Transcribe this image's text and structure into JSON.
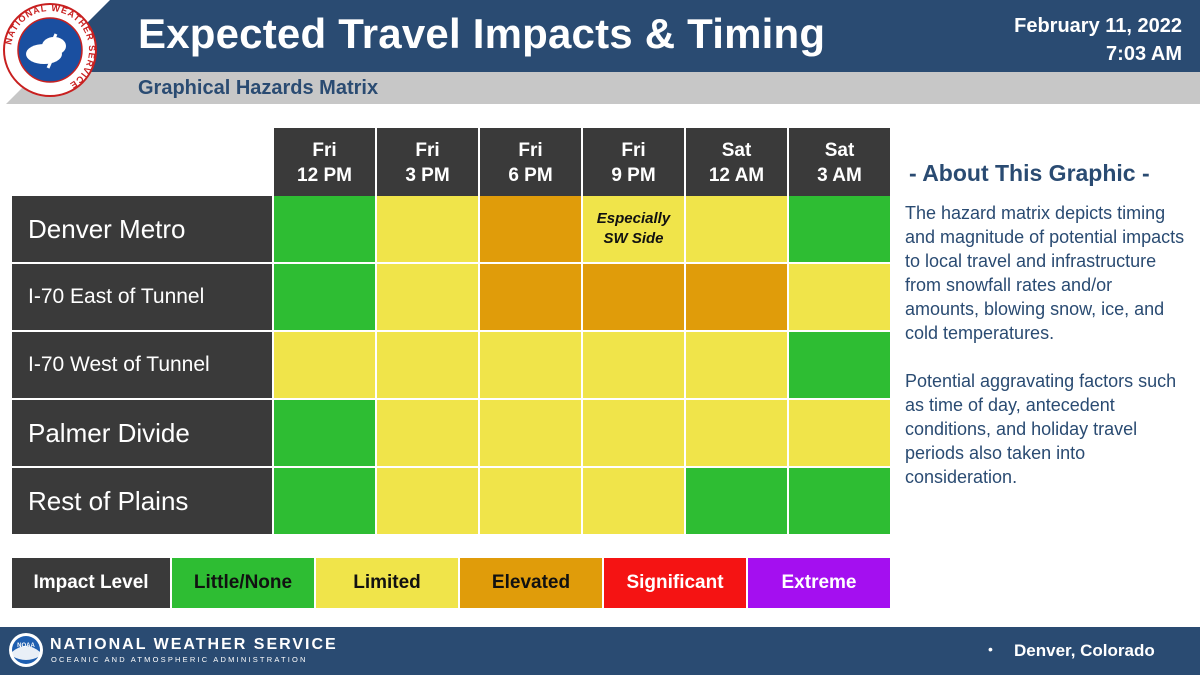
{
  "header": {
    "title": "Expected Travel Impacts & Timing",
    "subtitle": "Graphical Hazards Matrix",
    "date": "February 11, 2022",
    "time": "7:03 AM",
    "logo_ring_text": "NATIONAL WEATHER SERVICE",
    "colors": {
      "bar": "#2a4b72",
      "subbar": "#c7c7c7"
    }
  },
  "matrix": {
    "columns": [
      {
        "day": "Fri",
        "time": "12 PM"
      },
      {
        "day": "Fri",
        "time": "3 PM"
      },
      {
        "day": "Fri",
        "time": "6 PM"
      },
      {
        "day": "Fri",
        "time": "9 PM"
      },
      {
        "day": "Sat",
        "time": "12 AM"
      },
      {
        "day": "Sat",
        "time": "3 AM"
      }
    ],
    "rows": [
      {
        "name": "Denver Metro",
        "levels": [
          "little",
          "limited",
          "elevated",
          "limited",
          "limited",
          "little"
        ],
        "notes": [
          "",
          "",
          "",
          "Especially SW Side",
          "",
          ""
        ]
      },
      {
        "name": "I-70 East of Tunnel",
        "levels": [
          "little",
          "limited",
          "elevated",
          "elevated",
          "elevated",
          "limited"
        ],
        "notes": [
          "",
          "",
          "",
          "",
          "",
          ""
        ]
      },
      {
        "name": "I-70 West of Tunnel",
        "levels": [
          "limited",
          "limited",
          "limited",
          "limited",
          "limited",
          "little"
        ],
        "notes": [
          "",
          "",
          "",
          "",
          "",
          ""
        ]
      },
      {
        "name": "Palmer Divide",
        "levels": [
          "little",
          "limited",
          "limited",
          "limited",
          "limited",
          "limited"
        ],
        "notes": [
          "",
          "",
          "",
          "",
          "",
          ""
        ]
      },
      {
        "name": "Rest of Plains",
        "levels": [
          "little",
          "limited",
          "limited",
          "limited",
          "little",
          "little"
        ],
        "notes": [
          "",
          "",
          "",
          "",
          "",
          ""
        ]
      }
    ]
  },
  "level_colors": {
    "little": "#2ebd33",
    "limited": "#f0e44a",
    "elevated": "#e09c0a",
    "significant": "#f51313",
    "extreme": "#a40ff0"
  },
  "about": {
    "title": "- About This Graphic -",
    "paragraph1": "The hazard matrix depicts timing and magnitude of potential impacts to local travel and infrastructure from snowfall rates and/or amounts, blowing snow, ice, and cold temperatures.",
    "paragraph2": "Potential aggravating factors such as time of day, antecedent conditions, and holiday travel periods also taken into consideration."
  },
  "legend": {
    "label": "Impact Level",
    "items": [
      {
        "key": "little",
        "label": "Little/None",
        "text_color": "#111111"
      },
      {
        "key": "limited",
        "label": "Limited",
        "text_color": "#111111"
      },
      {
        "key": "elevated",
        "label": "Elevated",
        "text_color": "#111111"
      },
      {
        "key": "significant",
        "label": "Significant",
        "text_color": "#ffffff"
      },
      {
        "key": "extreme",
        "label": "Extreme",
        "text_color": "#ffffff"
      }
    ]
  },
  "footer": {
    "org": "NATIONAL WEATHER SERVICE",
    "sub": "OCEANIC AND ATMOSPHERIC ADMINISTRATION",
    "noaa_text": "NOAA",
    "location": "Denver, Colorado"
  }
}
